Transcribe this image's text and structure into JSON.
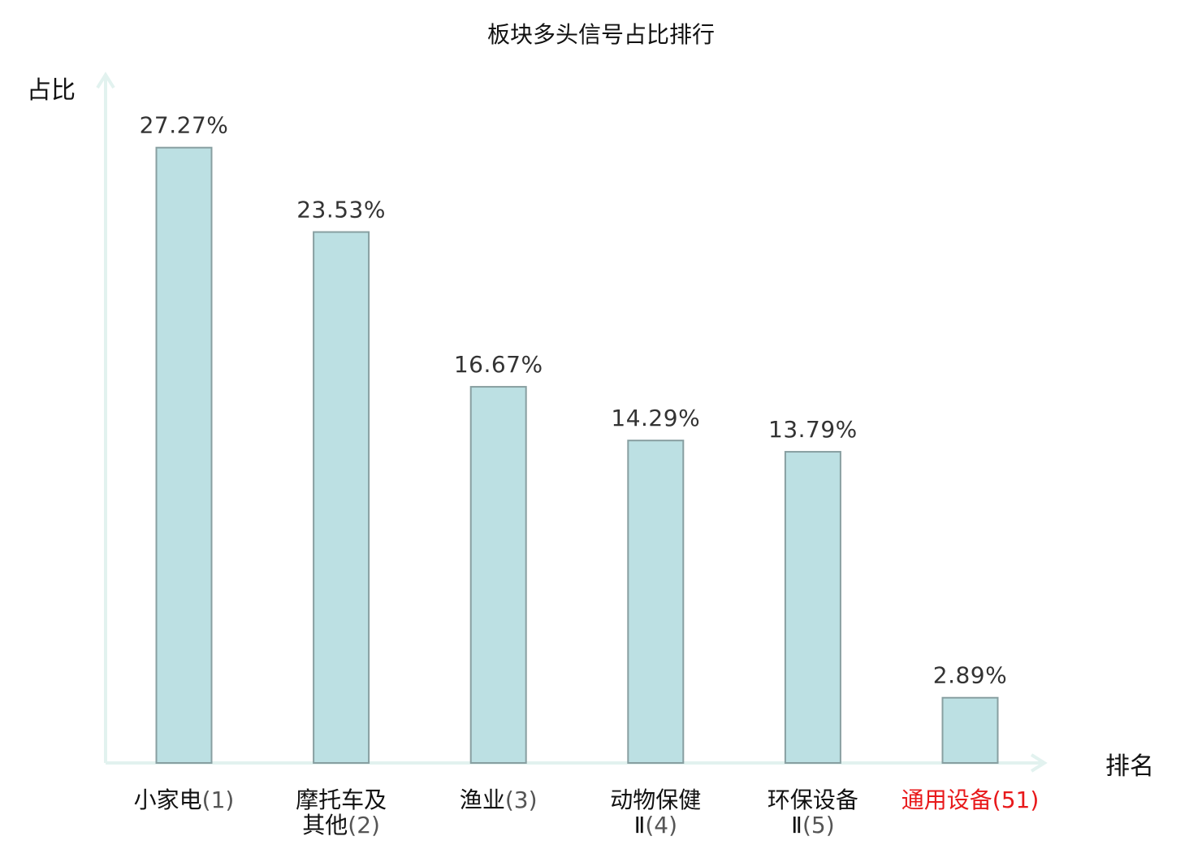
{
  "chart_data": {
    "type": "bar",
    "title": "板块多头信号占比排行",
    "ylabel": "占比",
    "xlabel": "排名",
    "ylim": [
      0,
      30.5
    ],
    "categories": [
      {
        "lines": [
          {
            "name": "小家电",
            "rank": "(1)"
          }
        ],
        "highlight": false
      },
      {
        "lines": [
          {
            "name": "摩托车及",
            "rank": ""
          },
          {
            "name": "其他",
            "rank": "(2)"
          }
        ],
        "highlight": false
      },
      {
        "lines": [
          {
            "name": "渔业",
            "rank": "(3)"
          }
        ],
        "highlight": false
      },
      {
        "lines": [
          {
            "name": "动物保健",
            "rank": ""
          },
          {
            "name": "Ⅱ",
            "rank": "(4)"
          }
        ],
        "highlight": false
      },
      {
        "lines": [
          {
            "name": "环保设备",
            "rank": ""
          },
          {
            "name": "Ⅱ",
            "rank": "(5)"
          }
        ],
        "highlight": false
      },
      {
        "lines": [
          {
            "name": "通用设备",
            "rank": "(51)"
          }
        ],
        "highlight": true
      }
    ],
    "values": [
      27.27,
      23.53,
      16.67,
      14.29,
      13.79,
      2.89
    ],
    "value_labels": [
      "27.27%",
      "23.53%",
      "16.67%",
      "14.29%",
      "13.79%",
      "2.89%"
    ],
    "colors": {
      "bar_fill": "#bce0e3",
      "bar_stroke": "#889fa1",
      "axis": "#e2f2ef",
      "highlight": "#e8191b"
    },
    "grid": false,
    "legend": "none"
  }
}
